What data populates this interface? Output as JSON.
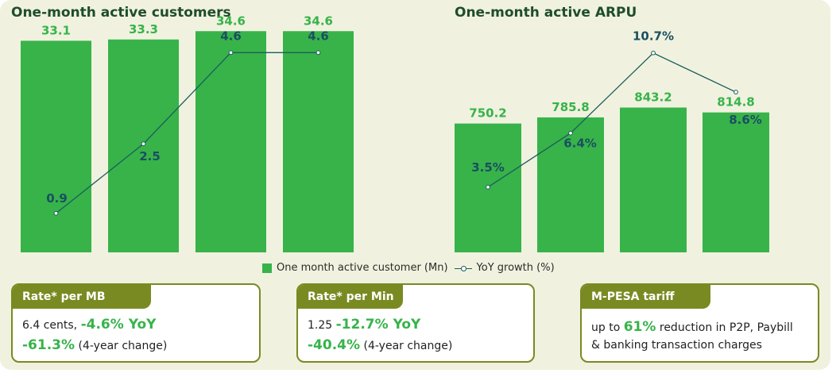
{
  "colors": {
    "bar": "#37b34a",
    "bar_label": "#37b34a",
    "line": "#1b5f5a",
    "line_label": "#1b4f60",
    "card_header": "#7a8a22",
    "title": "#1f4d2a"
  },
  "chart_data": [
    {
      "type": "bar",
      "title": "One-month active customers",
      "categories": [
        "",
        "",
        "",
        ""
      ],
      "series": [
        {
          "name": "One month active customer (Mn)",
          "type": "bar",
          "values": [
            33.1,
            33.3,
            34.6,
            34.6
          ],
          "labels": [
            "33.1",
            "33.3",
            "34.6",
            "34.6"
          ]
        },
        {
          "name": "YoY growth (%)",
          "type": "line",
          "values": [
            0.9,
            2.5,
            4.6,
            4.6
          ],
          "labels": [
            "0.9",
            "2.5",
            "4.6",
            "4.6"
          ]
        }
      ],
      "ylim": [
        0,
        36
      ],
      "y2lim": [
        0,
        5.3
      ],
      "grid": false
    },
    {
      "type": "bar",
      "title": "One-month active ARPU",
      "categories": [
        "",
        "",
        "",
        ""
      ],
      "series": [
        {
          "name": "One month active customer (Mn)",
          "type": "bar",
          "values": [
            750.2,
            785.8,
            843.2,
            814.8
          ],
          "labels": [
            "750.2",
            "785.8",
            "843.2",
            "814.8"
          ]
        },
        {
          "name": "YoY growth (%)",
          "type": "line",
          "values": [
            3.5,
            6.4,
            10.7,
            8.6
          ],
          "labels": [
            "3.5%",
            "6.4%",
            "10.7%",
            "8.6%"
          ]
        }
      ],
      "ylim": [
        0,
        1340
      ],
      "y2lim": [
        0,
        12.35
      ],
      "grid": false
    }
  ],
  "legend": {
    "bar_label": "One month active customer (Mn)",
    "line_label": "YoY growth (%)"
  },
  "cards": [
    {
      "header": "Rate*  per MB",
      "line1_text": "6.4 cents, ",
      "line1_highlight": "-4.6% YoY",
      "line2_highlight": "-61.3%",
      "line2_text": " (4-year change)"
    },
    {
      "header": "Rate*  per Min",
      "line1_text": "1.25 ",
      "line1_highlight": "-12.7% YoY",
      "line2_highlight": "-40.4%",
      "line2_text": " (4-year change)"
    },
    {
      "header": "M-PESA tariff",
      "line1_prefix": "up to ",
      "line1_highlight": "61%",
      "line1_suffix": " reduction in P2P, Paybill",
      "line2_text": "& banking transaction charges"
    }
  ]
}
